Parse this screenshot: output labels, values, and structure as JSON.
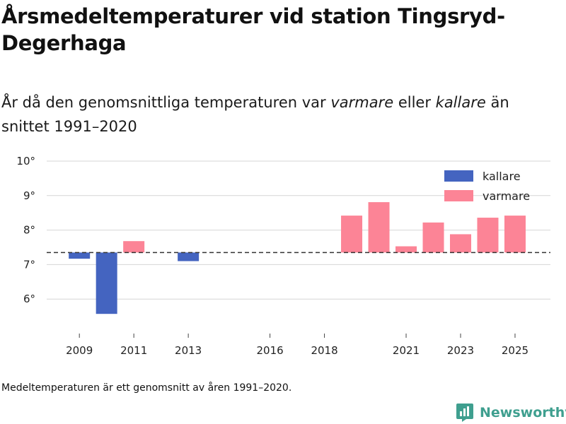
{
  "header": {
    "title": "Årsmedeltemperaturer vid station Tingsryd-Degerhaga",
    "subtitle_pre": "År då den genomsnittliga temperaturen var ",
    "subtitle_warm": "varmare",
    "subtitle_mid": " eller ",
    "subtitle_cold": "kallare",
    "subtitle_post": " än snittet 1991–2020"
  },
  "footer": {
    "note": "Medeltemperaturen är ett genomsnitt av åren 1991–2020.",
    "brand": "Newsworthy"
  },
  "colors": {
    "cold": "#4464c0",
    "warm": "#fc8496",
    "grid": "#d6d6d6",
    "baseline": "#333333",
    "brand": "#3f9f8f"
  },
  "icons": {
    "brand": "newsworthy-logo-icon"
  },
  "chart_data": {
    "type": "bar",
    "title": "Årsmedeltemperaturer vid station Tingsryd-Degerhaga",
    "xlabel": "",
    "ylabel": "",
    "baseline": 7.35,
    "ylim": [
      5.0,
      10.0
    ],
    "yticks": [
      6,
      7,
      8,
      9,
      10
    ],
    "ytick_labels": [
      "6°",
      "7°",
      "8°",
      "9°",
      "10°"
    ],
    "xlim": [
      2007.8,
      2026.3
    ],
    "xticks": [
      2009,
      2011,
      2013,
      2016,
      2018,
      2021,
      2023,
      2025
    ],
    "xtick_labels": [
      "2009",
      "2011",
      "2013",
      "2016",
      "2018",
      "2021",
      "2023",
      "2025"
    ],
    "legend": {
      "position": "top-right",
      "entries": [
        "kallare",
        "varmare"
      ]
    },
    "series": [
      {
        "name": "kallare",
        "color_key": "cold",
        "points": [
          {
            "x": 2009,
            "y": 7.17
          },
          {
            "x": 2010,
            "y": 5.57
          },
          {
            "x": 2013,
            "y": 7.1
          }
        ]
      },
      {
        "name": "varmare",
        "color_key": "warm",
        "points": [
          {
            "x": 2011,
            "y": 7.68
          },
          {
            "x": 2019,
            "y": 8.42
          },
          {
            "x": 2020,
            "y": 8.81
          },
          {
            "x": 2021,
            "y": 7.53
          },
          {
            "x": 2022,
            "y": 8.22
          },
          {
            "x": 2023,
            "y": 7.88
          },
          {
            "x": 2024,
            "y": 8.36
          },
          {
            "x": 2025,
            "y": 8.42
          }
        ]
      }
    ]
  }
}
